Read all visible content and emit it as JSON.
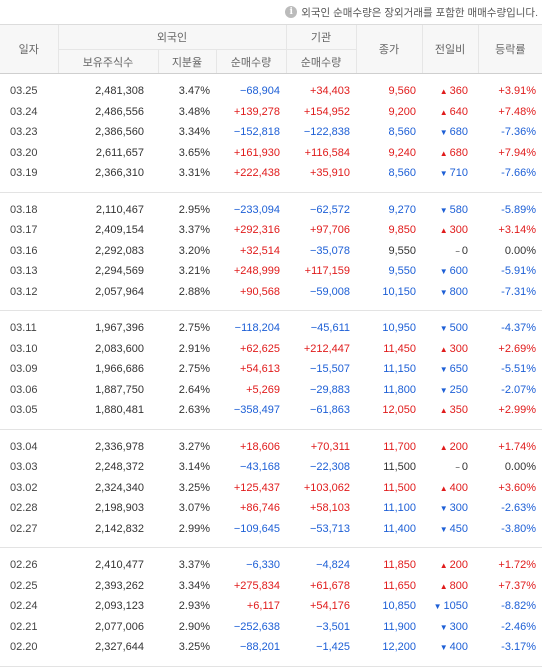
{
  "notice": "외국인 순매수량은 장외거래를 포함한 매매수량입니다.",
  "header": {
    "date": "일자",
    "foreign": "외국인",
    "institution": "기관",
    "close": "종가",
    "change": "전일비",
    "rate": "등락률",
    "holdings": "보유주식수",
    "ratio": "지분율",
    "foreign_net": "순매수량",
    "inst_net": "순매수량"
  },
  "groups": [
    [
      {
        "date": "03.25",
        "hold": "2,481,308",
        "ratio": "3.47%",
        "fnet": "−68,904",
        "inet": "+34,403",
        "close": "9,560",
        "dir": "up",
        "chg": "360",
        "rate": "+3.91%"
      },
      {
        "date": "03.24",
        "hold": "2,486,556",
        "ratio": "3.48%",
        "fnet": "+139,278",
        "inet": "+154,952",
        "close": "9,200",
        "dir": "up",
        "chg": "640",
        "rate": "+7.48%"
      },
      {
        "date": "03.23",
        "hold": "2,386,560",
        "ratio": "3.34%",
        "fnet": "−152,818",
        "inet": "−122,838",
        "close": "8,560",
        "dir": "down",
        "chg": "680",
        "rate": "-7.36%"
      },
      {
        "date": "03.20",
        "hold": "2,611,657",
        "ratio": "3.65%",
        "fnet": "+161,930",
        "inet": "+116,584",
        "close": "9,240",
        "dir": "up",
        "chg": "680",
        "rate": "+7.94%"
      },
      {
        "date": "03.19",
        "hold": "2,366,310",
        "ratio": "3.31%",
        "fnet": "+222,438",
        "inet": "+35,910",
        "close": "8,560",
        "dir": "down",
        "chg": "710",
        "rate": "-7.66%"
      }
    ],
    [
      {
        "date": "03.18",
        "hold": "2,110,467",
        "ratio": "2.95%",
        "fnet": "−233,094",
        "inet": "−62,572",
        "close": "9,270",
        "dir": "down",
        "chg": "580",
        "rate": "-5.89%"
      },
      {
        "date": "03.17",
        "hold": "2,409,154",
        "ratio": "3.37%",
        "fnet": "+292,316",
        "inet": "+97,706",
        "close": "9,850",
        "dir": "up",
        "chg": "300",
        "rate": "+3.14%"
      },
      {
        "date": "03.16",
        "hold": "2,292,083",
        "ratio": "3.20%",
        "fnet": "+32,514",
        "inet": "−35,078",
        "close": "9,550",
        "dir": "flat",
        "chg": "0",
        "rate": "0.00%"
      },
      {
        "date": "03.13",
        "hold": "2,294,569",
        "ratio": "3.21%",
        "fnet": "+248,999",
        "inet": "+117,159",
        "close": "9,550",
        "dir": "down",
        "chg": "600",
        "rate": "-5.91%"
      },
      {
        "date": "03.12",
        "hold": "2,057,964",
        "ratio": "2.88%",
        "fnet": "+90,568",
        "inet": "−59,008",
        "close": "10,150",
        "dir": "down",
        "chg": "800",
        "rate": "-7.31%"
      }
    ],
    [
      {
        "date": "03.11",
        "hold": "1,967,396",
        "ratio": "2.75%",
        "fnet": "−118,204",
        "inet": "−45,611",
        "close": "10,950",
        "dir": "down",
        "chg": "500",
        "rate": "-4.37%"
      },
      {
        "date": "03.10",
        "hold": "2,083,600",
        "ratio": "2.91%",
        "fnet": "+62,625",
        "inet": "+212,447",
        "close": "11,450",
        "dir": "up",
        "chg": "300",
        "rate": "+2.69%"
      },
      {
        "date": "03.09",
        "hold": "1,966,686",
        "ratio": "2.75%",
        "fnet": "+54,613",
        "inet": "−15,507",
        "close": "11,150",
        "dir": "down",
        "chg": "650",
        "rate": "-5.51%"
      },
      {
        "date": "03.06",
        "hold": "1,887,750",
        "ratio": "2.64%",
        "fnet": "+5,269",
        "inet": "−29,883",
        "close": "11,800",
        "dir": "down",
        "chg": "250",
        "rate": "-2.07%"
      },
      {
        "date": "03.05",
        "hold": "1,880,481",
        "ratio": "2.63%",
        "fnet": "−358,497",
        "inet": "−61,863",
        "close": "12,050",
        "dir": "up",
        "chg": "350",
        "rate": "+2.99%"
      }
    ],
    [
      {
        "date": "03.04",
        "hold": "2,336,978",
        "ratio": "3.27%",
        "fnet": "+18,606",
        "inet": "+70,311",
        "close": "11,700",
        "dir": "up",
        "chg": "200",
        "rate": "+1.74%"
      },
      {
        "date": "03.03",
        "hold": "2,248,372",
        "ratio": "3.14%",
        "fnet": "−43,168",
        "inet": "−22,308",
        "close": "11,500",
        "dir": "flat",
        "chg": "0",
        "rate": "0.00%"
      },
      {
        "date": "03.02",
        "hold": "2,324,340",
        "ratio": "3.25%",
        "fnet": "+125,437",
        "inet": "+103,062",
        "close": "11,500",
        "dir": "up",
        "chg": "400",
        "rate": "+3.60%"
      },
      {
        "date": "02.28",
        "hold": "2,198,903",
        "ratio": "3.07%",
        "fnet": "+86,746",
        "inet": "+58,103",
        "close": "11,100",
        "dir": "down",
        "chg": "300",
        "rate": "-2.63%"
      },
      {
        "date": "02.27",
        "hold": "2,142,832",
        "ratio": "2.99%",
        "fnet": "−109,645",
        "inet": "−53,713",
        "close": "11,400",
        "dir": "down",
        "chg": "450",
        "rate": "-3.80%"
      }
    ],
    [
      {
        "date": "02.26",
        "hold": "2,410,477",
        "ratio": "3.37%",
        "fnet": "−6,330",
        "inet": "−4,824",
        "close": "11,850",
        "dir": "up",
        "chg": "200",
        "rate": "+1.72%"
      },
      {
        "date": "02.25",
        "hold": "2,393,262",
        "ratio": "3.34%",
        "fnet": "+275,834",
        "inet": "+61,678",
        "close": "11,650",
        "dir": "up",
        "chg": "800",
        "rate": "+7.37%"
      },
      {
        "date": "02.24",
        "hold": "2,093,123",
        "ratio": "2.93%",
        "fnet": "+6,117",
        "inet": "+54,176",
        "close": "10,850",
        "dir": "down",
        "chg": "1050",
        "rate": "-8.82%"
      },
      {
        "date": "02.21",
        "hold": "2,077,006",
        "ratio": "2.90%",
        "fnet": "−252,638",
        "inet": "−3,501",
        "close": "11,900",
        "dir": "down",
        "chg": "300",
        "rate": "-2.46%"
      },
      {
        "date": "02.20",
        "hold": "2,327,644",
        "ratio": "3.25%",
        "fnet": "−88,201",
        "inet": "−1,425",
        "close": "12,200",
        "dir": "down",
        "chg": "400",
        "rate": "-3.17%"
      }
    ]
  ],
  "arrows": {
    "up": "▲",
    "down": "▼",
    "flat": "−"
  },
  "colors": {
    "up": "#e01b1b",
    "down": "#1d5fd6",
    "neutral": "#333333"
  }
}
